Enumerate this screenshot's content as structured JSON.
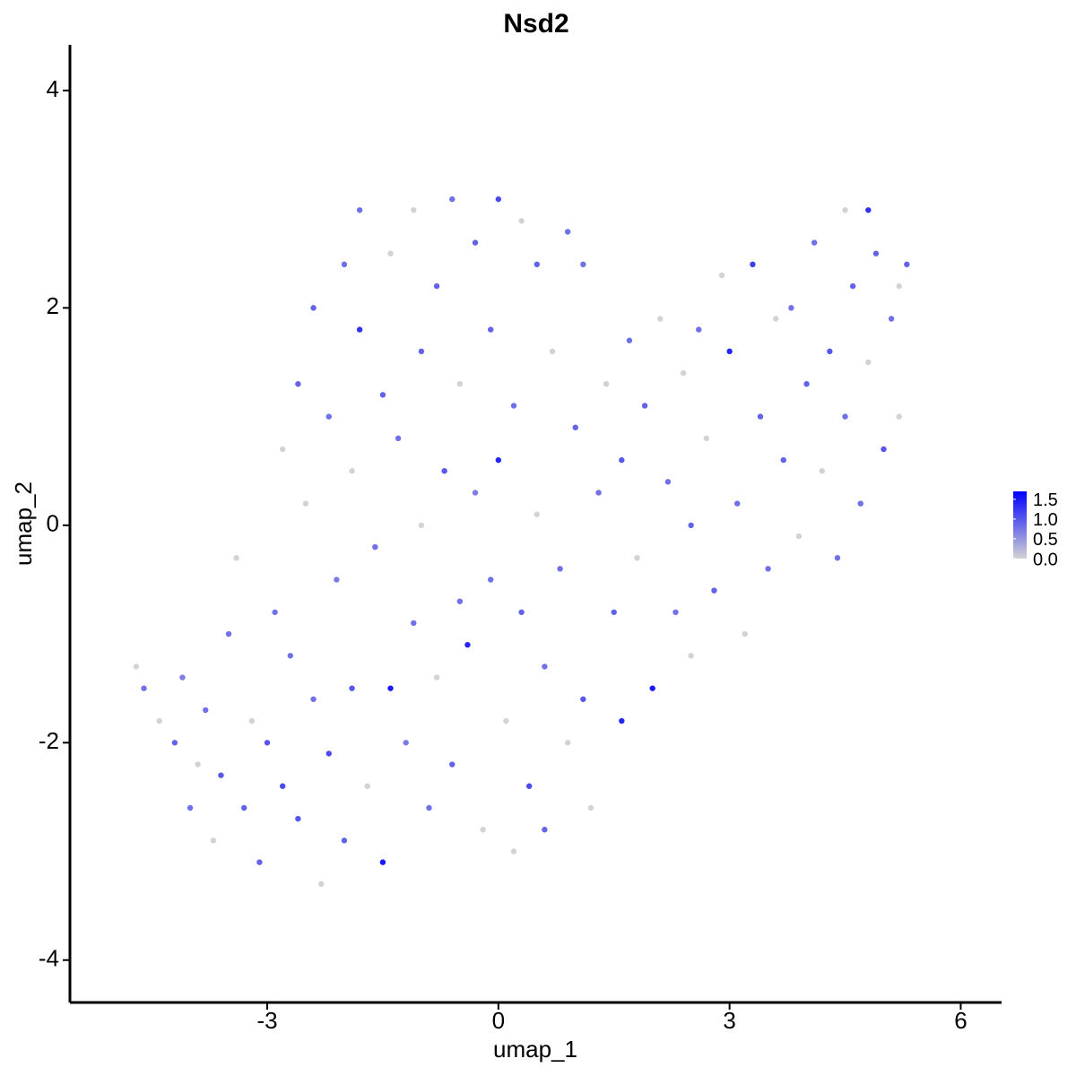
{
  "chart_data": {
    "type": "scatter",
    "title": "Nsd2",
    "xlabel": "umap_1",
    "ylabel": "umap_2",
    "xlim": [
      -5.56,
      6.53
    ],
    "ylim": [
      -4.39,
      4.42
    ],
    "xticks": [
      -3,
      0,
      3,
      6
    ],
    "yticks": [
      -4,
      -2,
      0,
      2,
      4
    ],
    "x": [
      -4.7,
      -4.6,
      -4.4,
      -4.2,
      -4.1,
      -4.0,
      -3.9,
      -3.8,
      -3.7,
      -3.6,
      -3.5,
      -3.4,
      -3.3,
      -3.2,
      -3.1,
      -3.0,
      -2.9,
      -2.8,
      -2.8,
      -2.7,
      -2.6,
      -2.6,
      -2.5,
      -2.4,
      -2.4,
      -2.3,
      -2.2,
      -2.2,
      -2.1,
      -2.0,
      -2.0,
      -1.9,
      -1.9,
      -1.8,
      -1.8,
      -1.7,
      -1.6,
      -1.5,
      -1.5,
      -1.4,
      -1.4,
      -1.3,
      -1.2,
      -1.1,
      -1.1,
      -1.0,
      -1.0,
      -0.9,
      -0.8,
      -0.8,
      -0.7,
      -0.6,
      -0.6,
      -0.5,
      -0.5,
      -0.4,
      -0.3,
      -0.3,
      -0.2,
      -0.1,
      -0.1,
      0,
      0,
      0.1,
      0.2,
      0.2,
      0.3,
      0.3,
      0.4,
      0.5,
      0.5,
      0.6,
      0.6,
      0.7,
      0.8,
      0.9,
      0.9,
      1.0,
      1.1,
      1.1,
      1.2,
      1.3,
      1.4,
      1.5,
      1.6,
      1.6,
      1.7,
      1.8,
      1.9,
      2.0,
      2.1,
      2.2,
      2.3,
      2.4,
      2.5,
      2.5,
      2.6,
      2.7,
      2.8,
      2.9,
      3.0,
      3.1,
      3.2,
      3.3,
      3.4,
      3.5,
      3.6,
      3.7,
      3.8,
      3.9,
      4.0,
      4.1,
      4.2,
      4.3,
      4.4,
      4.5,
      4.5,
      4.6,
      4.7,
      4.8,
      4.8,
      4.9,
      5.0,
      5.1,
      5.2,
      5.3,
      5.2
    ],
    "y": [
      -1.3,
      -1.5,
      -1.8,
      -2.0,
      -1.4,
      -2.6,
      -2.2,
      -1.7,
      -2.9,
      -2.3,
      -1.0,
      -0.3,
      -2.6,
      -1.8,
      -3.1,
      -2.0,
      -0.8,
      0.7,
      -2.4,
      -1.2,
      1.3,
      -2.7,
      0.2,
      -1.6,
      2.0,
      -3.3,
      1.0,
      -2.1,
      -0.5,
      2.4,
      -2.9,
      0.5,
      -1.5,
      1.8,
      2.9,
      -2.4,
      -0.2,
      1.2,
      -3.1,
      -1.5,
      2.5,
      0.8,
      -2.0,
      2.9,
      -0.9,
      1.6,
      0.0,
      -2.6,
      2.2,
      -1.4,
      0.5,
      3.0,
      -2.2,
      1.3,
      -0.7,
      -1.1,
      2.6,
      0.3,
      -2.8,
      1.8,
      -0.5,
      3.0,
      0.6,
      -1.8,
      1.1,
      -3.0,
      2.8,
      -0.8,
      -2.4,
      0.1,
      2.4,
      -1.3,
      -2.8,
      1.6,
      -0.4,
      2.7,
      -2.0,
      0.9,
      -1.6,
      2.4,
      -2.6,
      0.3,
      1.3,
      -0.8,
      0.6,
      -1.8,
      1.7,
      -0.3,
      1.1,
      -1.5,
      1.9,
      0.4,
      -0.8,
      1.4,
      0.0,
      -1.2,
      1.8,
      0.8,
      -0.6,
      2.3,
      1.6,
      0.2,
      -1.0,
      2.4,
      1.0,
      -0.4,
      1.9,
      0.6,
      2.0,
      -0.1,
      1.3,
      2.6,
      0.5,
      1.6,
      -0.3,
      2.9,
      1.0,
      2.2,
      0.2,
      2.9,
      1.5,
      2.5,
      0.7,
      1.9,
      2.2,
      2.4,
      1.0
    ],
    "expression": [
      0,
      0.8,
      0,
      0.9,
      0.7,
      0.8,
      0,
      0.8,
      0,
      1.0,
      0.8,
      0,
      0.9,
      0,
      0.9,
      1.0,
      0.8,
      0,
      1.1,
      0.8,
      0.9,
      1.0,
      0,
      0.8,
      0.9,
      0,
      0.8,
      1.1,
      0.7,
      0.8,
      0.9,
      0,
      1.0,
      1.3,
      0.8,
      0,
      0.8,
      0.9,
      1.5,
      1.5,
      0,
      0.8,
      0.7,
      0,
      0.8,
      0.9,
      0,
      0.8,
      0.9,
      0,
      1.0,
      0.8,
      0.9,
      0,
      0.8,
      1.4,
      0.9,
      0.7,
      0,
      0.9,
      0.8,
      1.1,
      1.4,
      0,
      0.8,
      0,
      0,
      0.9,
      1.1,
      0,
      0.9,
      0.8,
      0.9,
      0,
      0.8,
      0.8,
      0,
      0.9,
      1.0,
      0.8,
      0,
      0.8,
      0,
      0.9,
      1.0,
      1.4,
      0.8,
      0,
      0.9,
      1.5,
      0,
      0.8,
      0.8,
      0,
      0.9,
      0,
      0.8,
      0,
      0.9,
      0,
      1.4,
      0.8,
      0,
      1.2,
      0.9,
      0.8,
      0,
      0.9,
      0.8,
      0,
      0.9,
      0.8,
      0,
      1.0,
      0.8,
      0,
      0.8,
      0.9,
      0.8,
      1.3,
      0,
      0.9,
      1.0,
      0.8,
      0,
      0.9,
      0
    ],
    "colorbar": {
      "lim": [
        0,
        1.7
      ],
      "ticks": [
        {
          "value": 0,
          "label": "0.0"
        },
        {
          "value": 0.5,
          "label": "0.5"
        },
        {
          "value": 1,
          "label": "1.0"
        },
        {
          "value": 1.5,
          "label": "1.5"
        }
      ],
      "low_color": "#d3d3d3",
      "high_color": "#0000ff"
    }
  }
}
